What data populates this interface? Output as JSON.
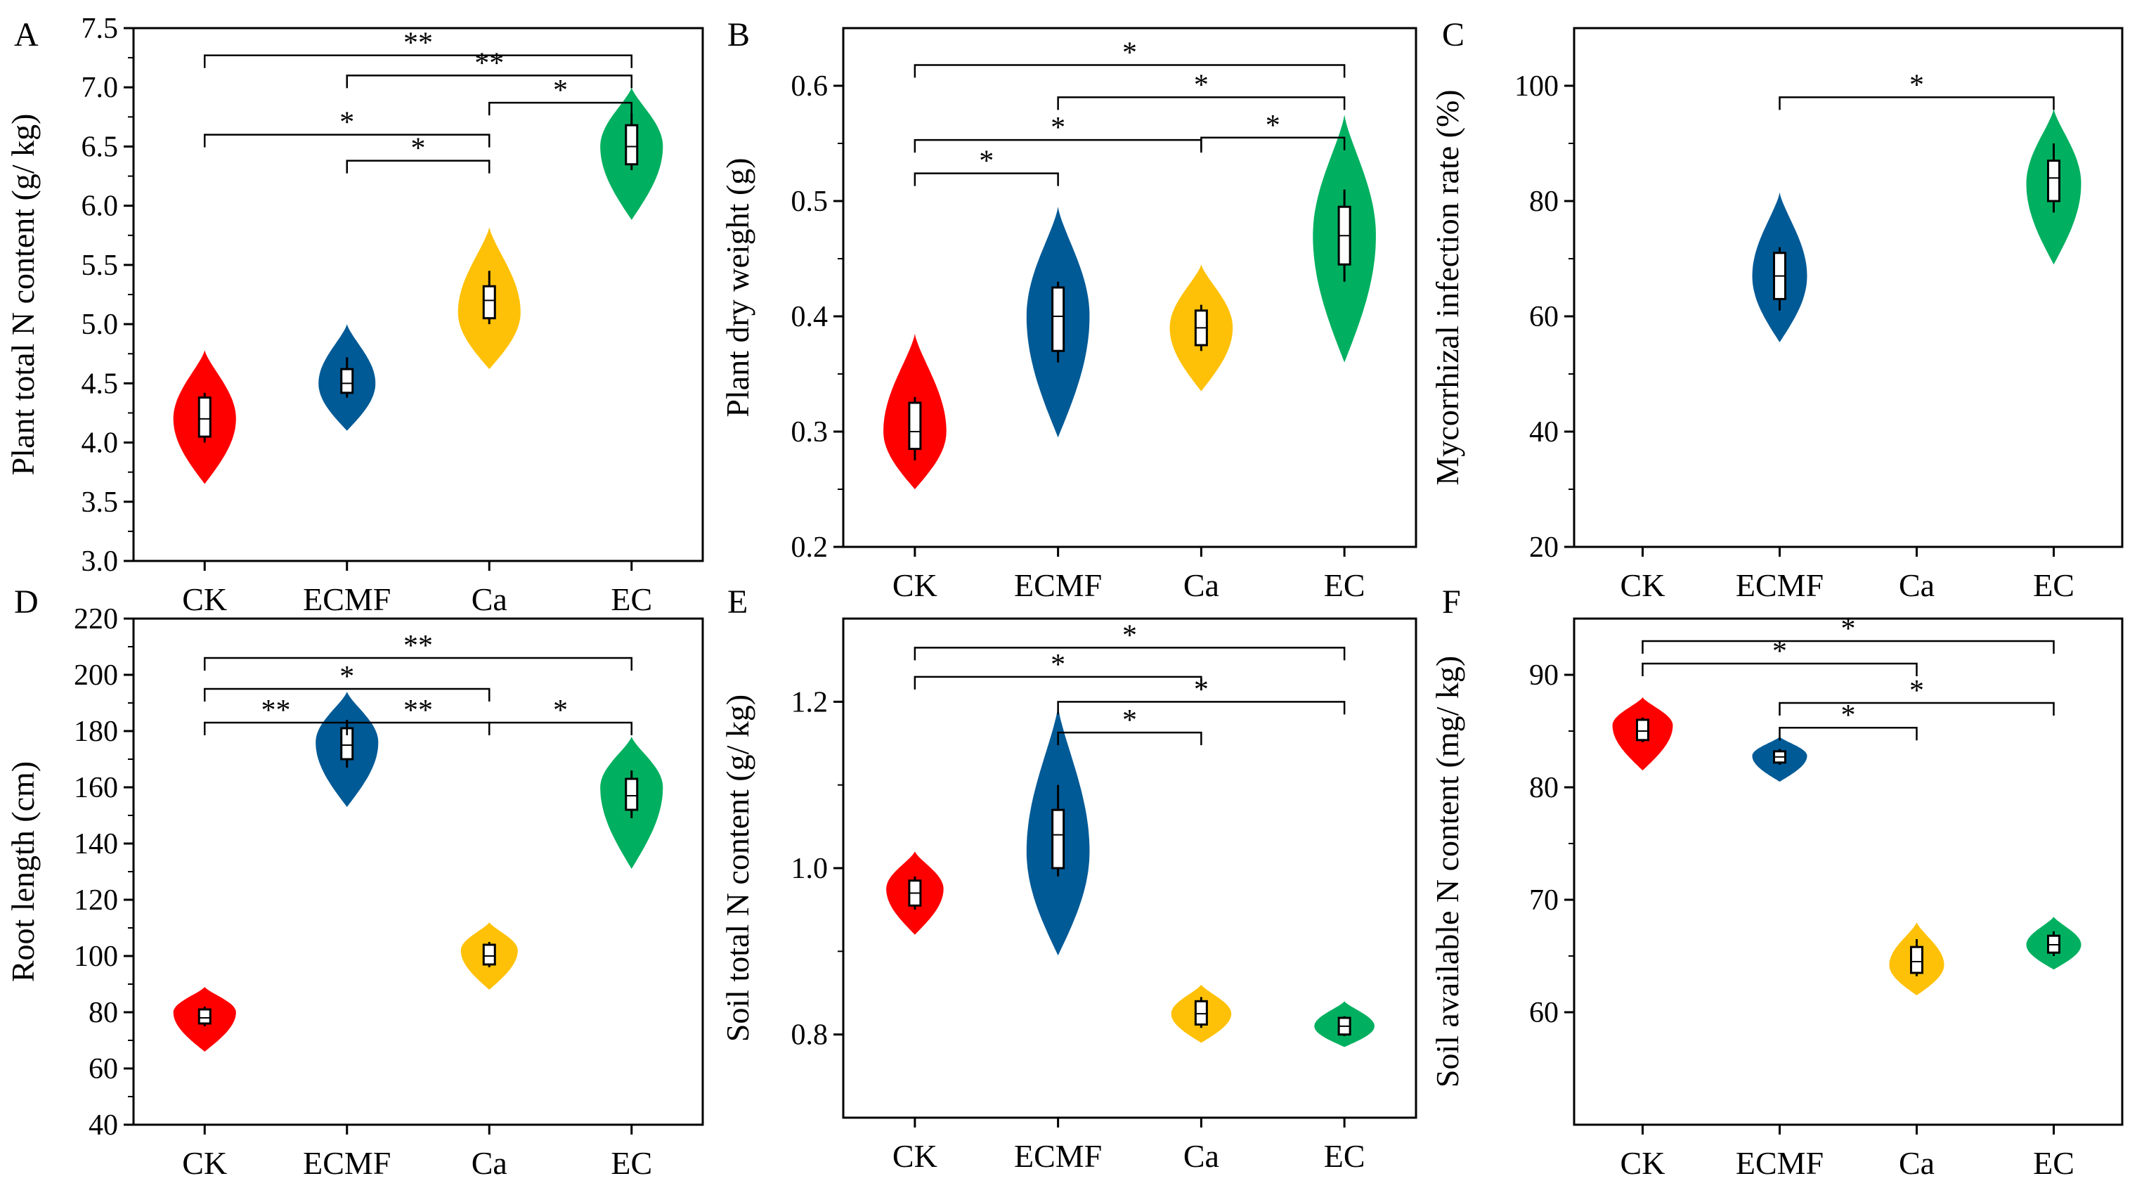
{
  "colors": {
    "CK": "#ff0000",
    "ECMF": "#005a96",
    "Ca": "#ffc107",
    "EC": "#00b060"
  },
  "chart_data": [
    {
      "panel": "A",
      "type": "violin",
      "ylabel": "Plant total N content (g/ kg)",
      "ylim": [
        3.0,
        7.5
      ],
      "yticks": [
        3.0,
        3.5,
        4.0,
        4.5,
        5.0,
        5.5,
        6.0,
        6.5,
        7.0,
        7.5
      ],
      "categories": [
        "CK",
        "ECMF",
        "Ca",
        "EC"
      ],
      "series": [
        {
          "name": "CK",
          "min": 3.65,
          "max": 4.78,
          "mode": 4.2,
          "width": 0.22,
          "box": [
            4.05,
            4.38
          ],
          "whisker": [
            4.0,
            4.42
          ],
          "median": 4.2
        },
        {
          "name": "ECMF",
          "min": 4.1,
          "max": 5.0,
          "mode": 4.5,
          "width": 0.2,
          "box": [
            4.42,
            4.62
          ],
          "whisker": [
            4.38,
            4.72
          ],
          "median": 4.5
        },
        {
          "name": "Ca",
          "min": 4.62,
          "max": 5.82,
          "mode": 5.1,
          "width": 0.22,
          "box": [
            5.05,
            5.32
          ],
          "whisker": [
            5.0,
            5.45
          ],
          "median": 5.2
        },
        {
          "name": "EC",
          "min": 5.88,
          "max": 7.0,
          "mode": 6.5,
          "width": 0.22,
          "box": [
            6.35,
            6.68
          ],
          "whisker": [
            6.3,
            6.78
          ],
          "median": 6.5
        }
      ],
      "significance": [
        {
          "from": 0,
          "to": 3,
          "label": "**",
          "y": 7.27
        },
        {
          "from": 1,
          "to": 3,
          "label": "**",
          "y": 7.1
        },
        {
          "from": 2,
          "to": 3,
          "label": "*",
          "y": 6.87
        },
        {
          "from": 0,
          "to": 2,
          "label": "*",
          "y": 6.6
        },
        {
          "from": 1,
          "to": 2,
          "label": "*",
          "y": 6.38
        }
      ]
    },
    {
      "panel": "B",
      "type": "violin",
      "ylabel": "Plant dry weight (g)",
      "ylim": [
        0.2,
        0.65
      ],
      "yticks": [
        0.2,
        0.3,
        0.4,
        0.5,
        0.6
      ],
      "categories": [
        "CK",
        "ECMF",
        "Ca",
        "EC"
      ],
      "series": [
        {
          "name": "CK",
          "min": 0.25,
          "max": 0.385,
          "mode": 0.3,
          "width": 0.22,
          "box": [
            0.285,
            0.325
          ],
          "whisker": [
            0.275,
            0.33
          ],
          "median": 0.3
        },
        {
          "name": "ECMF",
          "min": 0.295,
          "max": 0.495,
          "mode": 0.4,
          "width": 0.22,
          "box": [
            0.37,
            0.425
          ],
          "whisker": [
            0.36,
            0.43
          ],
          "median": 0.4
        },
        {
          "name": "Ca",
          "min": 0.335,
          "max": 0.445,
          "mode": 0.39,
          "width": 0.22,
          "box": [
            0.375,
            0.405
          ],
          "whisker": [
            0.37,
            0.41
          ],
          "median": 0.39
        },
        {
          "name": "EC",
          "min": 0.36,
          "max": 0.575,
          "mode": 0.47,
          "width": 0.22,
          "box": [
            0.445,
            0.495
          ],
          "whisker": [
            0.43,
            0.51
          ],
          "median": 0.47
        }
      ],
      "significance": [
        {
          "from": 0,
          "to": 3,
          "label": "*",
          "y": 0.618
        },
        {
          "from": 1,
          "to": 3,
          "label": "*",
          "y": 0.59
        },
        {
          "from": 0,
          "to": 2,
          "label": "*",
          "y": 0.553
        },
        {
          "from": 2,
          "to": 3,
          "label": "*",
          "y": 0.555
        },
        {
          "from": 0,
          "to": 1,
          "label": "*",
          "y": 0.524
        }
      ]
    },
    {
      "panel": "C",
      "type": "violin",
      "ylabel": "Mycorrhizal infection rate (%)",
      "ylim": [
        20,
        110
      ],
      "yticks": [
        20,
        40,
        60,
        80,
        100
      ],
      "categories": [
        "CK",
        "ECMF",
        "Ca",
        "EC"
      ],
      "series": [
        {
          "name": "ECMF",
          "index": 1,
          "min": 55.5,
          "max": 81.5,
          "mode": 67,
          "width": 0.2,
          "box": [
            63,
            71
          ],
          "whisker": [
            61,
            72
          ],
          "median": 67
        },
        {
          "name": "EC",
          "index": 3,
          "min": 69,
          "max": 96,
          "mode": 83,
          "width": 0.2,
          "box": [
            80,
            87
          ],
          "whisker": [
            78,
            90
          ],
          "median": 84
        }
      ],
      "significance": [
        {
          "from": 1,
          "to": 3,
          "label": "*",
          "y": 98
        }
      ]
    },
    {
      "panel": "D",
      "type": "violin",
      "ylabel": "Root length (cm)",
      "ylim": [
        40,
        220
      ],
      "yticks": [
        40,
        60,
        80,
        100,
        120,
        140,
        160,
        180,
        200,
        220
      ],
      "categories": [
        "CK",
        "ECMF",
        "Ca",
        "EC"
      ],
      "series": [
        {
          "name": "CK",
          "min": 66,
          "max": 89,
          "mode": 80,
          "width": 0.22,
          "box": [
            76,
            81
          ],
          "whisker": [
            75,
            82
          ],
          "median": 78
        },
        {
          "name": "ECMF",
          "min": 153,
          "max": 194,
          "mode": 176,
          "width": 0.22,
          "box": [
            170,
            181
          ],
          "whisker": [
            167,
            184
          ],
          "median": 175
        },
        {
          "name": "Ca",
          "min": 88,
          "max": 112,
          "mode": 102,
          "width": 0.2,
          "box": [
            97,
            104
          ],
          "whisker": [
            96,
            105
          ],
          "median": 100
        },
        {
          "name": "EC",
          "min": 131,
          "max": 178,
          "mode": 160,
          "width": 0.22,
          "box": [
            152,
            163
          ],
          "whisker": [
            149,
            166
          ],
          "median": 157
        }
      ],
      "significance": [
        {
          "from": 0,
          "to": 3,
          "label": "**",
          "y": 206
        },
        {
          "from": 0,
          "to": 2,
          "label": "*",
          "y": 195
        },
        {
          "from": 0,
          "to": 1,
          "label": "**",
          "y": 183
        },
        {
          "from": 1,
          "to": 2,
          "label": "**",
          "y": 183
        },
        {
          "from": 2,
          "to": 3,
          "label": "*",
          "y": 183
        }
      ]
    },
    {
      "panel": "E",
      "type": "violin",
      "ylabel": "Soil total N content (g/ kg)",
      "ylim": [
        0.7,
        1.3
      ],
      "yticks": [
        0.8,
        1.0,
        1.2
      ],
      "categories": [
        "CK",
        "ECMF",
        "Ca",
        "EC"
      ],
      "series": [
        {
          "name": "CK",
          "min": 0.92,
          "max": 1.02,
          "mode": 0.975,
          "width": 0.2,
          "box": [
            0.955,
            0.985
          ],
          "whisker": [
            0.95,
            0.99
          ],
          "median": 0.97
        },
        {
          "name": "ECMF",
          "min": 0.895,
          "max": 1.195,
          "mode": 1.02,
          "width": 0.22,
          "box": [
            1.0,
            1.07
          ],
          "whisker": [
            0.99,
            1.1
          ],
          "median": 1.04
        },
        {
          "name": "Ca",
          "min": 0.79,
          "max": 0.86,
          "mode": 0.825,
          "width": 0.21,
          "box": [
            0.812,
            0.84
          ],
          "whisker": [
            0.808,
            0.845
          ],
          "median": 0.825
        },
        {
          "name": "EC",
          "min": 0.785,
          "max": 0.84,
          "mode": 0.81,
          "width": 0.21,
          "box": [
            0.8,
            0.82
          ],
          "whisker": [
            0.798,
            0.822
          ],
          "median": 0.81
        }
      ],
      "significance": [
        {
          "from": 0,
          "to": 3,
          "label": "*",
          "y": 1.265
        },
        {
          "from": 0,
          "to": 2,
          "label": "*",
          "y": 1.23
        },
        {
          "from": 1,
          "to": 3,
          "label": "*",
          "y": 1.2
        },
        {
          "from": 1,
          "to": 2,
          "label": "*",
          "y": 1.163
        }
      ]
    },
    {
      "panel": "F",
      "type": "violin",
      "ylabel": "Soil available N content (mg/ kg)",
      "ylim": [
        50,
        95
      ],
      "yticks": [
        60,
        70,
        80,
        90
      ],
      "categories": [
        "CK",
        "ECMF",
        "Ca",
        "EC"
      ],
      "series": [
        {
          "name": "CK",
          "min": 81.5,
          "max": 88,
          "mode": 85.5,
          "width": 0.22,
          "box": [
            84.2,
            86
          ],
          "whisker": [
            84,
            86.2
          ],
          "median": 85
        },
        {
          "name": "ECMF",
          "min": 80.5,
          "max": 84.5,
          "mode": 82.8,
          "width": 0.2,
          "box": [
            82.2,
            83.2
          ],
          "whisker": [
            82,
            83.4
          ],
          "median": 82.7
        },
        {
          "name": "Ca",
          "min": 61.5,
          "max": 68,
          "mode": 64.2,
          "width": 0.2,
          "box": [
            63.5,
            65.8
          ],
          "whisker": [
            63.2,
            66.5
          ],
          "median": 64.5
        },
        {
          "name": "EC",
          "min": 63.8,
          "max": 68.5,
          "mode": 66,
          "width": 0.2,
          "box": [
            65.3,
            66.8
          ],
          "whisker": [
            65,
            67.2
          ],
          "median": 66
        }
      ],
      "significance": [
        {
          "from": 0,
          "to": 3,
          "label": "*",
          "y": 93
        },
        {
          "from": 0,
          "to": 2,
          "label": "*",
          "y": 91
        },
        {
          "from": 1,
          "to": 3,
          "label": "*",
          "y": 87.5
        },
        {
          "from": 1,
          "to": 2,
          "label": "*",
          "y": 85.3
        }
      ]
    }
  ]
}
